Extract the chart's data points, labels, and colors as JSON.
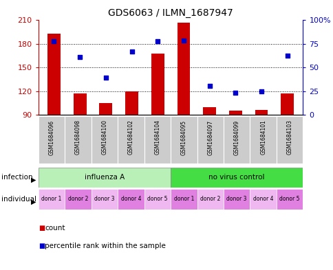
{
  "title": "GDS6063 / ILMN_1687947",
  "samples": [
    "GSM1684096",
    "GSM1684098",
    "GSM1684100",
    "GSM1684102",
    "GSM1684104",
    "GSM1684095",
    "GSM1684097",
    "GSM1684099",
    "GSM1684101",
    "GSM1684103"
  ],
  "bar_values": [
    193,
    117,
    105,
    120,
    168,
    207,
    100,
    95,
    96,
    117
  ],
  "scatter_values_pct": [
    77.5,
    60.8,
    39.2,
    66.7,
    77.5,
    78.3,
    30.8,
    23.3,
    25.0,
    62.5
  ],
  "ylim_left": [
    90,
    210
  ],
  "ylim_right": [
    0,
    100
  ],
  "yticks_left": [
    90,
    120,
    150,
    180,
    210
  ],
  "yticks_right": [
    0,
    25,
    50,
    75,
    100
  ],
  "bar_color": "#cc0000",
  "scatter_color": "#0000cc",
  "flu_color": "#b8f0b8",
  "novirus_color": "#44dd44",
  "infection_labels": [
    "influenza A",
    "no virus control"
  ],
  "individual_labels": [
    "donor 1",
    "donor 2",
    "donor 3",
    "donor 4",
    "donor 5",
    "donor 1",
    "donor 2",
    "donor 3",
    "donor 4",
    "donor 5"
  ],
  "ind_colors": [
    "#f0b8f0",
    "#e080e0"
  ],
  "legend_count_label": "count",
  "legend_percentile_label": "percentile rank within the sample",
  "left_axis_color": "#cc0000",
  "right_axis_color": "#0000cc",
  "background_color": "#ffffff",
  "sample_box_color": "#cccccc",
  "bar_width": 0.5
}
